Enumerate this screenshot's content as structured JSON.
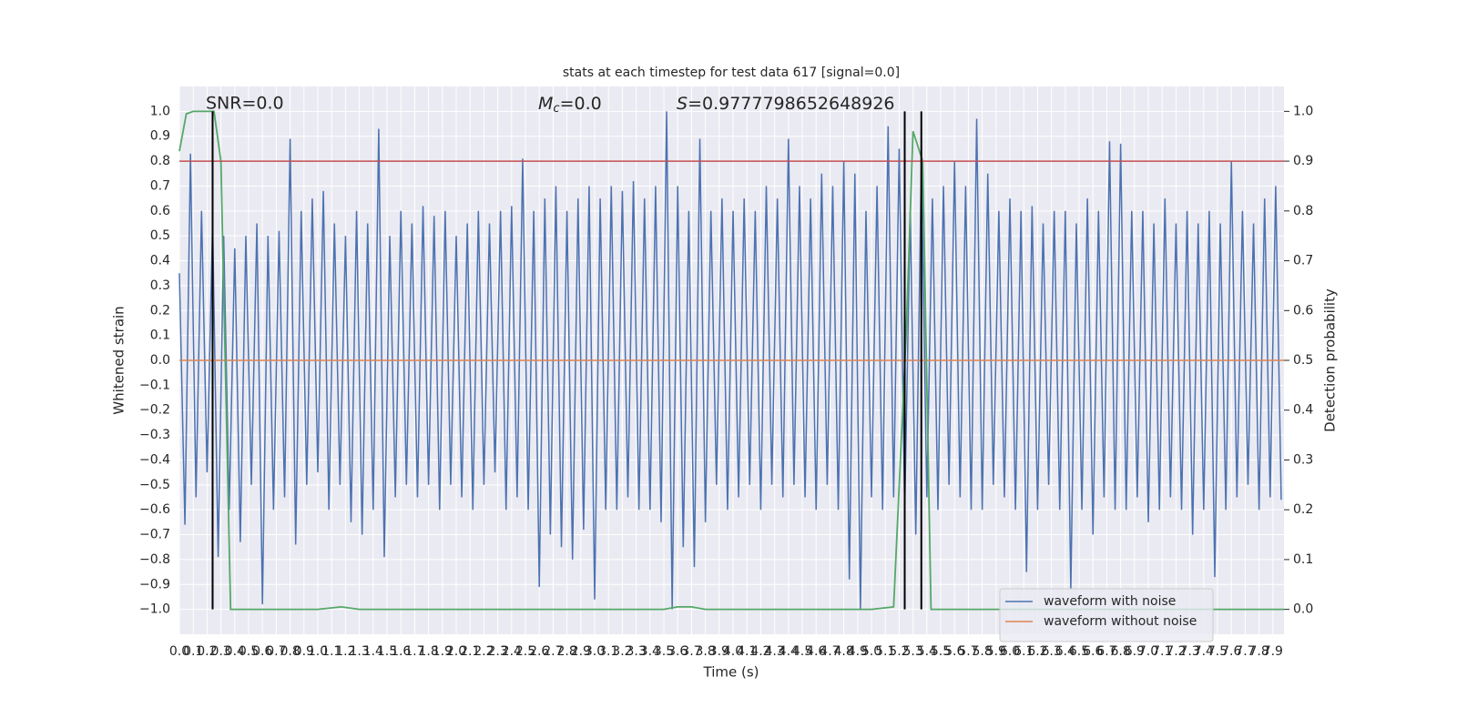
{
  "chart_data": {
    "type": "line",
    "title": "stats at each timestep for test data 617 [signal=0.0]",
    "xlabel": "Time (s)",
    "ylabel": "Whitened strain",
    "y2label": "Detection probability",
    "annotations": {
      "snr": "SNR=0.0",
      "mc": {
        "symbol": "M",
        "sub": "c",
        "text": "=0.0"
      },
      "s": {
        "symbol": "S",
        "text": "=0.9777798652648926"
      }
    },
    "xlim": [
      0,
      7.98
    ],
    "ylim": [
      -1.1,
      1.1
    ],
    "y2lim": [
      -0.05,
      1.05
    ],
    "grid": true,
    "legend": "lower right",
    "xticks": [
      {
        "value": 0,
        "label": "0.0"
      },
      0.1,
      0.2,
      0.3,
      0.4,
      0.5,
      0.6,
      0.7,
      0.8,
      0.9,
      {
        "value": 1,
        "label": "1.0"
      },
      1.1,
      1.2,
      1.3,
      1.4,
      1.5,
      1.6,
      1.7,
      1.8,
      1.9,
      {
        "value": 2,
        "label": "2.0"
      },
      2.1,
      2.2,
      2.3,
      2.4,
      2.5,
      2.6,
      2.7,
      2.8,
      2.9,
      {
        "value": 3,
        "label": "3.0"
      },
      3.1,
      3.2,
      3.3,
      3.4,
      3.5,
      3.6,
      3.7,
      3.8,
      3.9,
      {
        "value": 4,
        "label": "4.0"
      },
      4.1,
      4.2,
      4.3,
      4.4,
      4.5,
      4.6,
      4.7,
      4.8,
      4.9,
      {
        "value": 5,
        "label": "5.0"
      },
      5.1,
      5.2,
      5.3,
      5.4,
      5.5,
      5.6,
      5.7,
      5.8,
      5.9,
      {
        "value": 6,
        "label": "6.0"
      },
      6.1,
      6.2,
      6.3,
      6.4,
      6.5,
      6.6,
      6.7,
      6.8,
      6.9,
      {
        "value": 7,
        "label": "7.0"
      },
      7.1,
      7.2,
      7.3,
      7.4,
      7.5,
      7.6,
      7.7,
      7.8,
      7.9
    ],
    "yticks": [
      {
        "value": -1,
        "label": "−1.0"
      },
      {
        "value": -0.9,
        "label": "−0.9"
      },
      {
        "value": -0.8,
        "label": "−0.8"
      },
      {
        "value": -0.7,
        "label": "−0.7"
      },
      {
        "value": -0.6,
        "label": "−0.6"
      },
      {
        "value": -0.5,
        "label": "−0.5"
      },
      {
        "value": -0.4,
        "label": "−0.4"
      },
      {
        "value": -0.3,
        "label": "−0.3"
      },
      {
        "value": -0.2,
        "label": "−0.2"
      },
      {
        "value": -0.1,
        "label": "−0.1"
      },
      {
        "value": 0,
        "label": "0.0"
      },
      0.1,
      0.2,
      0.3,
      0.4,
      0.5,
      0.6,
      0.7,
      0.8,
      0.9,
      {
        "value": 1,
        "label": "1.0"
      }
    ],
    "y2ticks": [
      {
        "value": 0,
        "label": "0.0"
      },
      0.1,
      0.2,
      0.3,
      0.4,
      0.5,
      0.6,
      0.7,
      0.8,
      0.9,
      {
        "value": 1,
        "label": "1.0"
      }
    ],
    "series": [
      {
        "name": "waveform with noise",
        "color": "#4c72b0",
        "x": [
          0,
          0.04,
          0.08,
          0.12,
          0.16,
          0.2,
          0.24,
          0.28,
          0.32,
          0.36,
          0.4,
          0.44,
          0.48,
          0.52,
          0.56,
          0.6,
          0.64,
          0.68,
          0.72,
          0.76,
          0.8,
          0.84,
          0.88,
          0.92,
          0.96,
          1,
          1.04,
          1.08,
          1.12,
          1.16,
          1.2,
          1.24,
          1.28,
          1.32,
          1.36,
          1.4,
          1.44,
          1.48,
          1.52,
          1.56,
          1.6,
          1.64,
          1.68,
          1.72,
          1.76,
          1.8,
          1.84,
          1.88,
          1.92,
          1.96,
          2,
          2.04,
          2.08,
          2.12,
          2.16,
          2.2,
          2.24,
          2.28,
          2.32,
          2.36,
          2.4,
          2.44,
          2.48,
          2.52,
          2.56,
          2.6,
          2.64,
          2.68,
          2.72,
          2.76,
          2.8,
          2.84,
          2.88,
          2.92,
          2.96,
          3,
          3.04,
          3.08,
          3.12,
          3.16,
          3.2,
          3.24,
          3.28,
          3.32,
          3.36,
          3.4,
          3.44,
          3.48,
          3.52,
          3.56,
          3.6,
          3.64,
          3.68,
          3.72,
          3.76,
          3.8,
          3.84,
          3.88,
          3.92,
          3.96,
          4,
          4.04,
          4.08,
          4.12,
          4.16,
          4.2,
          4.24,
          4.28,
          4.32,
          4.36,
          4.4,
          4.44,
          4.48,
          4.52,
          4.56,
          4.6,
          4.64,
          4.68,
          4.72,
          4.76,
          4.8,
          4.84,
          4.88,
          4.92,
          4.96,
          5,
          5.04,
          5.08,
          5.12,
          5.16,
          5.2,
          5.24,
          5.28,
          5.32,
          5.36,
          5.4,
          5.44,
          5.48,
          5.52,
          5.56,
          5.6,
          5.64,
          5.68,
          5.72,
          5.76,
          5.8,
          5.84,
          5.88,
          5.92,
          5.96,
          6,
          6.04,
          6.08,
          6.12,
          6.16,
          6.2,
          6.24,
          6.28,
          6.32,
          6.36,
          6.4,
          6.44,
          6.48,
          6.52,
          6.56,
          6.6,
          6.64,
          6.68,
          6.72,
          6.76,
          6.8,
          6.84,
          6.88,
          6.92,
          6.96,
          7,
          7.04,
          7.08,
          7.12,
          7.16,
          7.2,
          7.24,
          7.28,
          7.32,
          7.36,
          7.4,
          7.44,
          7.48,
          7.52,
          7.56,
          7.6,
          7.64,
          7.68,
          7.72,
          7.76,
          7.8,
          7.84,
          7.88,
          7.92,
          7.96
        ],
        "values": [
          0.35,
          -0.66,
          0.83,
          -0.55,
          0.6,
          -0.45,
          0.55,
          -0.79,
          0.5,
          -0.6,
          0.45,
          -0.73,
          0.5,
          -0.5,
          0.55,
          -0.98,
          0.5,
          -0.6,
          0.52,
          -0.55,
          0.89,
          -0.74,
          0.6,
          -0.5,
          0.65,
          -0.45,
          0.68,
          -0.6,
          0.55,
          -0.5,
          0.5,
          -0.65,
          0.6,
          -0.7,
          0.55,
          -0.6,
          0.93,
          -0.79,
          0.5,
          -0.55,
          0.6,
          -0.5,
          0.55,
          -0.55,
          0.62,
          -0.5,
          0.58,
          -0.6,
          0.6,
          -0.5,
          0.5,
          -0.55,
          0.55,
          -0.6,
          0.6,
          -0.5,
          0.55,
          -0.45,
          0.6,
          -0.6,
          0.62,
          -0.55,
          0.81,
          -0.6,
          0.6,
          -0.91,
          0.65,
          -0.7,
          0.7,
          -0.75,
          0.6,
          -0.8,
          0.65,
          -0.68,
          0.7,
          -0.96,
          0.65,
          -0.6,
          0.7,
          -0.6,
          0.68,
          -0.55,
          0.72,
          -0.6,
          0.65,
          -0.6,
          0.7,
          -0.65,
          1.0,
          -1.0,
          0.7,
          -0.75,
          0.6,
          -0.83,
          0.89,
          -0.65,
          0.6,
          -0.5,
          0.65,
          -0.6,
          0.6,
          -0.55,
          0.65,
          -0.5,
          0.6,
          -0.6,
          0.7,
          -0.5,
          0.65,
          -0.55,
          0.89,
          -0.5,
          0.7,
          -0.55,
          0.65,
          -0.6,
          0.75,
          -0.5,
          0.7,
          -0.6,
          0.8,
          -0.88,
          0.75,
          -1.0,
          0.6,
          -0.55,
          0.7,
          -0.6,
          0.94,
          -0.55,
          0.85,
          -0.6,
          0.6,
          -0.7,
          0.8,
          -0.55,
          0.65,
          -0.6,
          0.7,
          -0.5,
          0.8,
          -0.55,
          0.7,
          -0.6,
          0.97,
          -0.6,
          0.75,
          -0.5,
          0.6,
          -0.55,
          0.65,
          -0.6,
          0.6,
          -0.85,
          0.62,
          -0.6,
          0.55,
          -0.5,
          0.6,
          -0.6,
          0.6,
          -0.92,
          0.55,
          -0.6,
          0.65,
          -0.7,
          0.6,
          -0.55,
          0.88,
          -0.6,
          0.87,
          -0.6,
          0.6,
          -0.55,
          0.6,
          -0.65,
          0.55,
          -0.6,
          0.65,
          -0.55,
          0.55,
          -0.6,
          0.6,
          -0.7,
          0.55,
          -0.6,
          0.6,
          -0.87,
          0.55,
          -0.6,
          0.8,
          -0.55,
          0.6,
          -0.5,
          0.55,
          -0.6,
          0.65,
          -0.55,
          0.7,
          -0.56
        ]
      },
      {
        "name": "waveform without noise",
        "color": "#dd8452",
        "x": [
          0,
          7.98
        ],
        "values": [
          0,
          0
        ]
      }
    ],
    "detection": {
      "color": "#55a868",
      "axis": "y2",
      "x": [
        0,
        0.05,
        0.1,
        0.25,
        0.3,
        0.37,
        0.5,
        1.0,
        1.17,
        1.3,
        3.5,
        3.6,
        3.7,
        3.8,
        5.0,
        5.16,
        5.25,
        5.3,
        5.37,
        5.43,
        5.6,
        7.98
      ],
      "values": [
        0.92,
        0.995,
        1.0,
        1.0,
        0.9,
        0.0,
        0.0,
        0.0,
        0.005,
        0.0,
        0.0,
        0.005,
        0.005,
        0.0,
        0.0,
        0.005,
        0.55,
        0.96,
        0.9,
        0.0,
        0.0,
        0.0
      ]
    },
    "threshold": {
      "value": 0.9,
      "axis": "y2",
      "color": "#c44e52"
    },
    "vlines": {
      "color": "#000000",
      "x": [
        0.24,
        5.24,
        5.36
      ]
    }
  }
}
